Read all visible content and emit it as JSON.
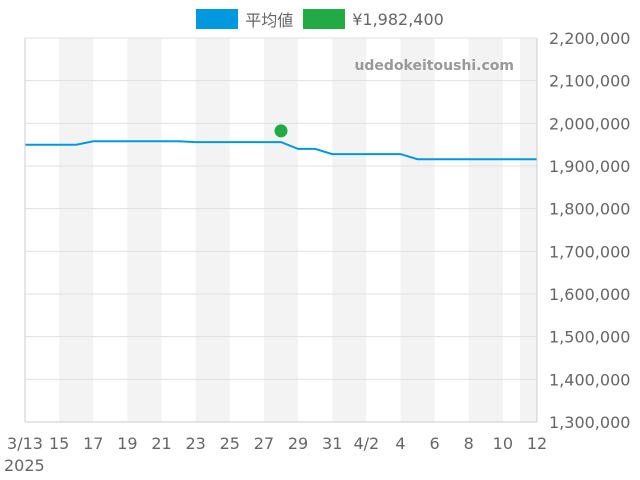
{
  "legend": {
    "average_label": "平均値",
    "price_label": "¥1,982,400"
  },
  "watermark": "udedokeitoushi.com",
  "colors": {
    "average": "#0099e0",
    "price": "#22aa44",
    "band": "#f3f3f3",
    "grid": "#e0e0e0",
    "axis": "#cccccc",
    "text": "#666666"
  },
  "chart_data": {
    "type": "line",
    "series": [
      {
        "name": "平均値",
        "x": [
          "3/13",
          "3/14",
          "3/15",
          "3/16",
          "3/17",
          "3/18",
          "3/19",
          "3/20",
          "3/21",
          "3/22",
          "3/23",
          "3/24",
          "3/25",
          "3/26",
          "3/27",
          "3/28",
          "3/29",
          "3/30",
          "3/31",
          "4/1",
          "4/2",
          "4/3",
          "4/4",
          "4/5",
          "4/6",
          "4/7",
          "4/8",
          "4/9",
          "4/10",
          "4/11",
          "4/12"
        ],
        "values": [
          1950000,
          1950000,
          1950000,
          1950000,
          1958000,
          1958000,
          1958000,
          1958000,
          1958000,
          1958000,
          1956000,
          1956000,
          1956000,
          1956000,
          1956000,
          1956000,
          1940000,
          1940000,
          1928000,
          1928000,
          1928000,
          1928000,
          1928000,
          1916000,
          1916000,
          1916000,
          1916000,
          1916000,
          1916000,
          1916000,
          1916000
        ]
      },
      {
        "name": "¥1,982,400",
        "points": [
          {
            "x": "3/28",
            "y": 1982400
          }
        ]
      }
    ],
    "x_tick_labels": [
      "3/13",
      "15",
      "17",
      "19",
      "21",
      "23",
      "25",
      "27",
      "29",
      "31",
      "4/2",
      "4",
      "6",
      "8",
      "10",
      "12"
    ],
    "x_year_label": "2025",
    "y_ticks": [
      1300000,
      1400000,
      1500000,
      1600000,
      1700000,
      1800000,
      1900000,
      2000000,
      2100000,
      2200000
    ],
    "y_tick_labels": [
      "1,300,000",
      "1,400,000",
      "1,500,000",
      "1,600,000",
      "1,700,000",
      "1,800,000",
      "1,900,000",
      "2,000,000",
      "2,100,000",
      "2,200,000"
    ],
    "ylim": [
      1300000,
      2200000
    ],
    "y_axis_side": "right",
    "legend_position": "top-center",
    "grid": true,
    "alternating_bands": true
  }
}
